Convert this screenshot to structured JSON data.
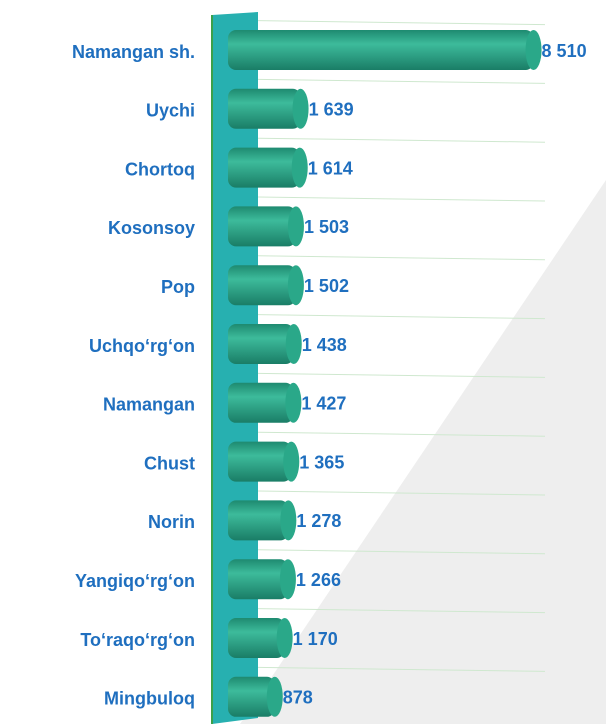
{
  "chart_data": {
    "type": "bar",
    "orientation": "horizontal",
    "categories": [
      "Namangan sh.",
      "Uychi",
      "Chortoq",
      "Kosonsoy",
      "Pop",
      "Uchqo‘rg‘on",
      "Namangan",
      "Chust",
      "Norin",
      "Yangiqo‘rg‘on",
      "To‘raqo‘rg‘on",
      "Mingbuloq"
    ],
    "values": [
      8510,
      1639,
      1614,
      1503,
      1502,
      1438,
      1427,
      1365,
      1278,
      1266,
      1170,
      878
    ],
    "value_labels": [
      "8 510",
      "1 639",
      "1 614",
      "1 503",
      "1 502",
      "1 438",
      "1 427",
      "1 365",
      "1 278",
      "1 266",
      "1 170",
      "878"
    ],
    "color": "#2aa889",
    "xlim": [
      0,
      8700
    ]
  }
}
